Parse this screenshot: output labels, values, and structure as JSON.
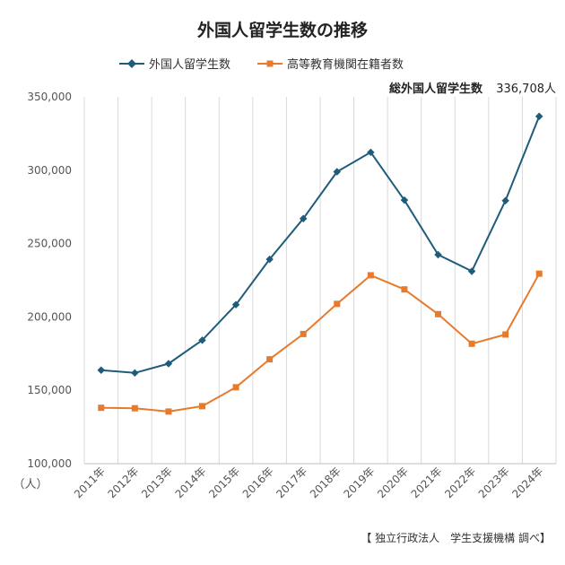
{
  "chart_data": {
    "type": "line",
    "title": "外国人留学生数の推移",
    "categories": [
      "2011年",
      "2012年",
      "2013年",
      "2014年",
      "2015年",
      "2016年",
      "2017年",
      "2018年",
      "2019年",
      "2020年",
      "2021年",
      "2022年",
      "2023年",
      "2024年"
    ],
    "series": [
      {
        "name": "外国人留学生数",
        "color": "#1f5c7a",
        "marker": "diamond",
        "values": [
          163697,
          161848,
          168145,
          184155,
          208379,
          239287,
          267042,
          298980,
          312214,
          279597,
          242444,
          231146,
          279274,
          336708
        ]
      },
      {
        "name": "高等教育機関在籍者数",
        "color": "#e87a2d",
        "marker": "square",
        "values": [
          138075,
          137756,
          135519,
          139185,
          152062,
          171122,
          188384,
          208901,
          228403,
          218783,
          201877,
          181741,
          188025,
          229474
        ]
      }
    ],
    "ylim": [
      100000,
      350000
    ],
    "yticks": [
      "350,000",
      "300,000",
      "250,000",
      "200,000",
      "150,000",
      "100,000"
    ],
    "ytick_values": [
      350000,
      300000,
      250000,
      200000,
      150000,
      100000
    ],
    "yunit": "（人）",
    "grid": "vertical",
    "legend_position": "top-center",
    "annotation": {
      "label": "総外国人留学生数",
      "value": "336,708人"
    },
    "source": "【 独立行政法人　学生支援機構 調べ】"
  }
}
